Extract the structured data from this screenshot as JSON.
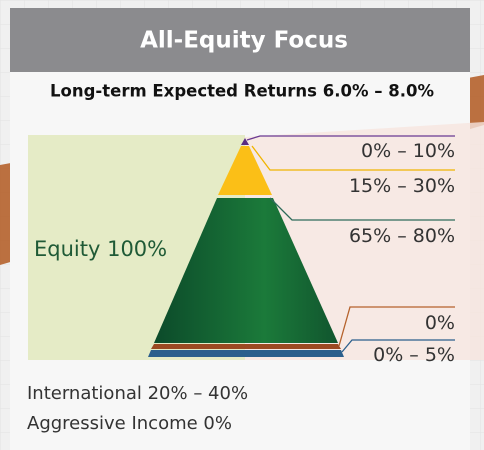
{
  "header": {
    "title": "All-Equity Focus"
  },
  "subtitle": "Long-term Expected Returns 6.0% – 8.0%",
  "pyramid": {
    "label": "Equity 100%",
    "layers": [
      {
        "range": "0% – 10%"
      },
      {
        "range": "15% – 30%"
      },
      {
        "range": "65% – 80%"
      },
      {
        "range": "0%"
      },
      {
        "range": "0% – 5%"
      }
    ]
  },
  "footer": [
    "International 20% – 40%",
    "Aggressive Income 0%"
  ]
}
